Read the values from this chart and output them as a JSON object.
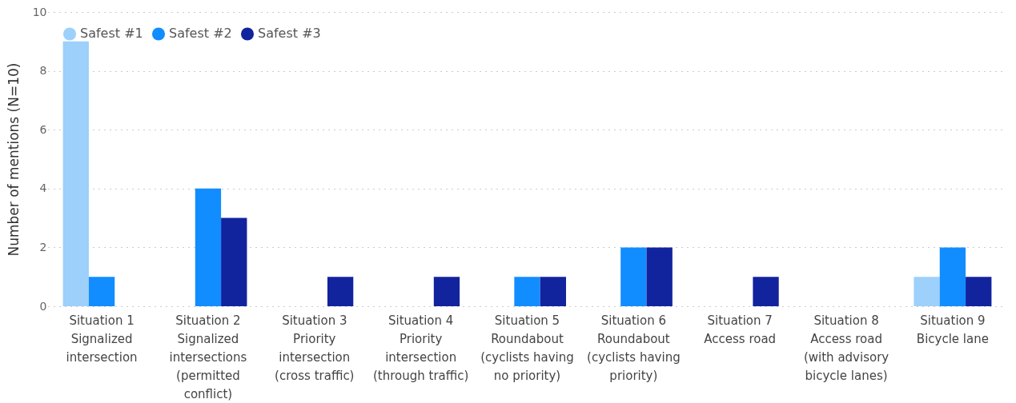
{
  "chart_data": {
    "type": "bar",
    "ylabel": "Number of mentions (N=10)",
    "categories": [
      "Situation 1\nSignalized\nintersection",
      "Situation 2\nSignalized\nintersections\n(permitted\nconflict)",
      "Situation 3\nPriority\nintersection\n(cross traffic)",
      "Situation 4\nPriority\nintersection\n(through traffic)",
      "Situation 5\nRoundabout\n(cyclists having\nno priority)",
      "Situation 6\nRoundabout\n(cyclists having\npriority)",
      "Situation 7\nAccess road",
      "Situation 8\nAccess road\n(with advisory\nbicycle lanes)",
      "Situation 9\nBicycle lane"
    ],
    "series": [
      {
        "name": "Safest #1",
        "color": "#9dd0fb",
        "values": [
          9,
          0,
          0,
          0,
          0,
          0,
          0,
          0,
          1
        ]
      },
      {
        "name": "Safest #2",
        "color": "#118dff",
        "values": [
          1,
          4,
          0,
          0,
          1,
          2,
          0,
          0,
          2
        ]
      },
      {
        "name": "Safest #3",
        "color": "#12239e",
        "values": [
          0,
          3,
          1,
          1,
          1,
          2,
          1,
          0,
          1
        ]
      }
    ],
    "ylim": [
      0,
      10
    ],
    "yticks": [
      0,
      2,
      4,
      6,
      8,
      10
    ],
    "grid": "y",
    "legend": "top left"
  }
}
